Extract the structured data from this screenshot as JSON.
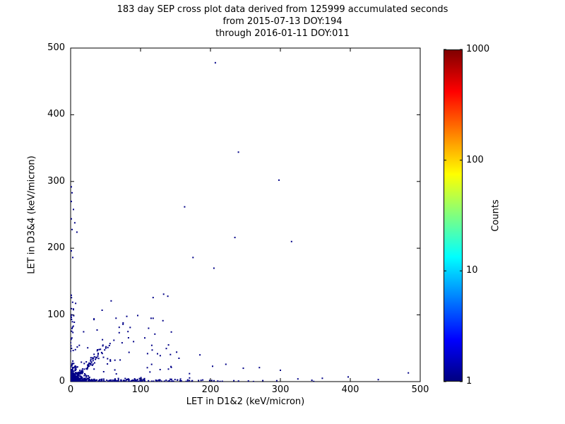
{
  "figure": {
    "title_line1": "183 day SEP cross plot data derived from 125999 accumulated seconds",
    "title_line2": "from 2015-07-13 DOY:194",
    "title_line3": "through 2016-01-11 DOY:011",
    "background": "#ffffff"
  },
  "chart_data": {
    "type": "scatter",
    "title": "183 day SEP cross plot data derived from 125999 accumulated seconds from 2015-07-13 DOY:194 through 2016-01-11 DOY:011",
    "xlabel": "LET in D1&2 (keV/micron)",
    "ylabel": "LET in D3&4 (keV/micron)",
    "xlim": [
      0,
      500
    ],
    "ylim": [
      0,
      500
    ],
    "x_ticks": [
      0,
      100,
      200,
      300,
      400,
      500
    ],
    "y_ticks": [
      0,
      100,
      200,
      300,
      400,
      500
    ],
    "grid": false,
    "point_color": "#000087",
    "marker_size_px": 2,
    "colorbar": {
      "label": "Counts",
      "scale": "log",
      "tick_labels": [
        "1",
        "10",
        "100",
        "1000"
      ],
      "range": [
        1,
        1000
      ],
      "colormap": "jet",
      "gradient_stops": [
        {
          "pos": 0.0,
          "color": "#000080"
        },
        {
          "pos": 0.125,
          "color": "#0000ff"
        },
        {
          "pos": 0.375,
          "color": "#00ffff"
        },
        {
          "pos": 0.625,
          "color": "#ffff00"
        },
        {
          "pos": 0.875,
          "color": "#ff0000"
        },
        {
          "pos": 1.0,
          "color": "#800000"
        }
      ]
    },
    "outlier_points": [
      [
        207,
        478
      ],
      [
        240,
        344
      ],
      [
        298,
        302
      ],
      [
        163,
        262
      ],
      [
        235,
        216
      ],
      [
        316,
        210
      ],
      [
        175,
        186
      ],
      [
        205,
        170
      ],
      [
        133,
        131
      ],
      [
        139,
        128
      ],
      [
        118,
        126
      ],
      [
        96,
        99
      ],
      [
        58,
        121
      ],
      [
        45,
        107
      ],
      [
        1,
        292
      ],
      [
        2,
        283
      ],
      [
        1,
        270
      ],
      [
        4,
        258
      ],
      [
        1,
        244
      ],
      [
        6,
        238
      ],
      [
        2,
        228
      ],
      [
        9,
        224
      ],
      [
        1,
        196
      ],
      [
        3,
        186
      ],
      [
        155,
        35
      ],
      [
        170,
        12
      ],
      [
        185,
        40
      ],
      [
        140,
        55
      ],
      [
        128,
        18
      ],
      [
        110,
        42
      ],
      [
        90,
        60
      ],
      [
        75,
        88
      ],
      [
        82,
        75
      ],
      [
        65,
        95
      ],
      [
        203,
        23
      ],
      [
        222,
        26
      ],
      [
        247,
        20
      ],
      [
        270,
        21
      ],
      [
        300,
        17
      ],
      [
        325,
        4
      ],
      [
        345,
        2
      ],
      [
        360,
        5
      ],
      [
        397,
        7
      ],
      [
        440,
        3
      ],
      [
        483,
        13
      ]
    ],
    "density_clusters": [
      {
        "name": "origin-blob",
        "n": 400,
        "x_dist": "exp",
        "x_scale": 5,
        "x_max": 34,
        "y_dist": "exp",
        "y_scale": 6,
        "y_max": 34
      },
      {
        "name": "diagonal-band",
        "n": 115,
        "t_scale": 24,
        "t_max": 92,
        "spread": 0.18
      },
      {
        "name": "x-axis-band",
        "n": 270,
        "x_dist": "exp",
        "x_scale": 75,
        "x_max": 350,
        "y_dist": "exp",
        "y_scale": 1.8,
        "y_max": 6
      },
      {
        "name": "y-axis-column",
        "n": 35,
        "x_dist": "exp",
        "x_scale": 2.5,
        "x_max": 8,
        "y_dist": "uniform",
        "y_min": 8,
        "y_max": 130
      },
      {
        "name": "sparse-low-triangle",
        "n": 50,
        "x_dist": "uniform",
        "x_min": 4,
        "x_max": 155,
        "y_dist": "uniform",
        "y_min": 6,
        "y_max": 100
      }
    ],
    "seed": 20150713
  }
}
